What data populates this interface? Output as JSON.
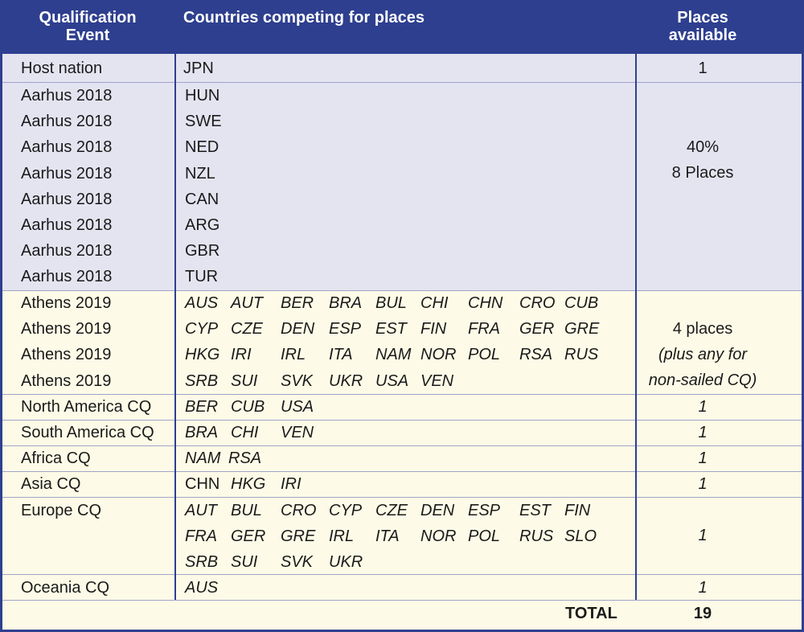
{
  "header": {
    "event_line1": "Qualification",
    "event_line2": "Event",
    "countries": "Countries competing for places",
    "places_line1": "Places",
    "places_line2": "available"
  },
  "host": {
    "event": "Host nation",
    "country": "JPN",
    "places": "1"
  },
  "aarhus": {
    "rows": [
      {
        "event": "Aarhus 2018",
        "country": "HUN"
      },
      {
        "event": "Aarhus 2018",
        "country": "SWE"
      },
      {
        "event": "Aarhus 2018",
        "country": "NED"
      },
      {
        "event": "Aarhus 2018",
        "country": "NZL"
      },
      {
        "event": "Aarhus 2018",
        "country": "CAN"
      },
      {
        "event": "Aarhus 2018",
        "country": "ARG"
      },
      {
        "event": "Aarhus 2018",
        "country": "GBR"
      },
      {
        "event": "Aarhus 2018",
        "country": "TUR"
      }
    ],
    "places_line1": "40%",
    "places_line2": "8 Places"
  },
  "athens": {
    "rows": [
      {
        "event": "Athens 2019",
        "countries": [
          "AUS",
          "AUT",
          "BER",
          "BRA",
          "BUL",
          "CHI",
          "CHN",
          "CRO",
          "CUB"
        ]
      },
      {
        "event": "Athens 2019",
        "countries": [
          "CYP",
          "CZE",
          "DEN",
          "ESP",
          "EST",
          "FIN",
          "FRA",
          "GER",
          "GRE"
        ]
      },
      {
        "event": "Athens 2019",
        "countries": [
          "HKG",
          "IRI",
          "IRL",
          "ITA",
          "NAM",
          "NOR",
          "POL",
          "RSA",
          "RUS"
        ]
      },
      {
        "event": "Athens 2019",
        "countries": [
          "SRB",
          "SUI",
          "SVK",
          "UKR",
          "USA",
          "VEN"
        ]
      }
    ],
    "places_line1": "4 places",
    "places_line2": "(plus any for",
    "places_line3": "non-sailed CQ)"
  },
  "continental": [
    {
      "event": "North America CQ",
      "countries": [
        "BER",
        "CUB",
        "USA"
      ],
      "places": "1"
    },
    {
      "event": "South America CQ",
      "countries": [
        "BRA",
        "CHI",
        "VEN"
      ],
      "places": "1"
    },
    {
      "event": "Africa CQ",
      "countries": [
        "NAM",
        "RSA"
      ],
      "places": "1"
    },
    {
      "event": "Asia CQ",
      "countries": [
        "CHN",
        "HKG",
        "IRI"
      ],
      "places": "1"
    }
  ],
  "europe": {
    "event": "Europe CQ",
    "lines": [
      [
        "AUT",
        "BUL",
        "CRO",
        "CYP",
        "CZE",
        "DEN",
        "ESP",
        "EST",
        "FIN"
      ],
      [
        "FRA",
        "GER",
        "GRE",
        "IRL",
        "ITA",
        "NOR",
        "POL",
        "RUS",
        "SLO"
      ],
      [
        "SRB",
        "SUI",
        "SVK",
        "UKR"
      ]
    ],
    "places": "1"
  },
  "oceania": {
    "event": "Oceania CQ",
    "countries": [
      "AUS"
    ],
    "places": "1"
  },
  "total": {
    "label": "TOTAL",
    "value": "19"
  }
}
